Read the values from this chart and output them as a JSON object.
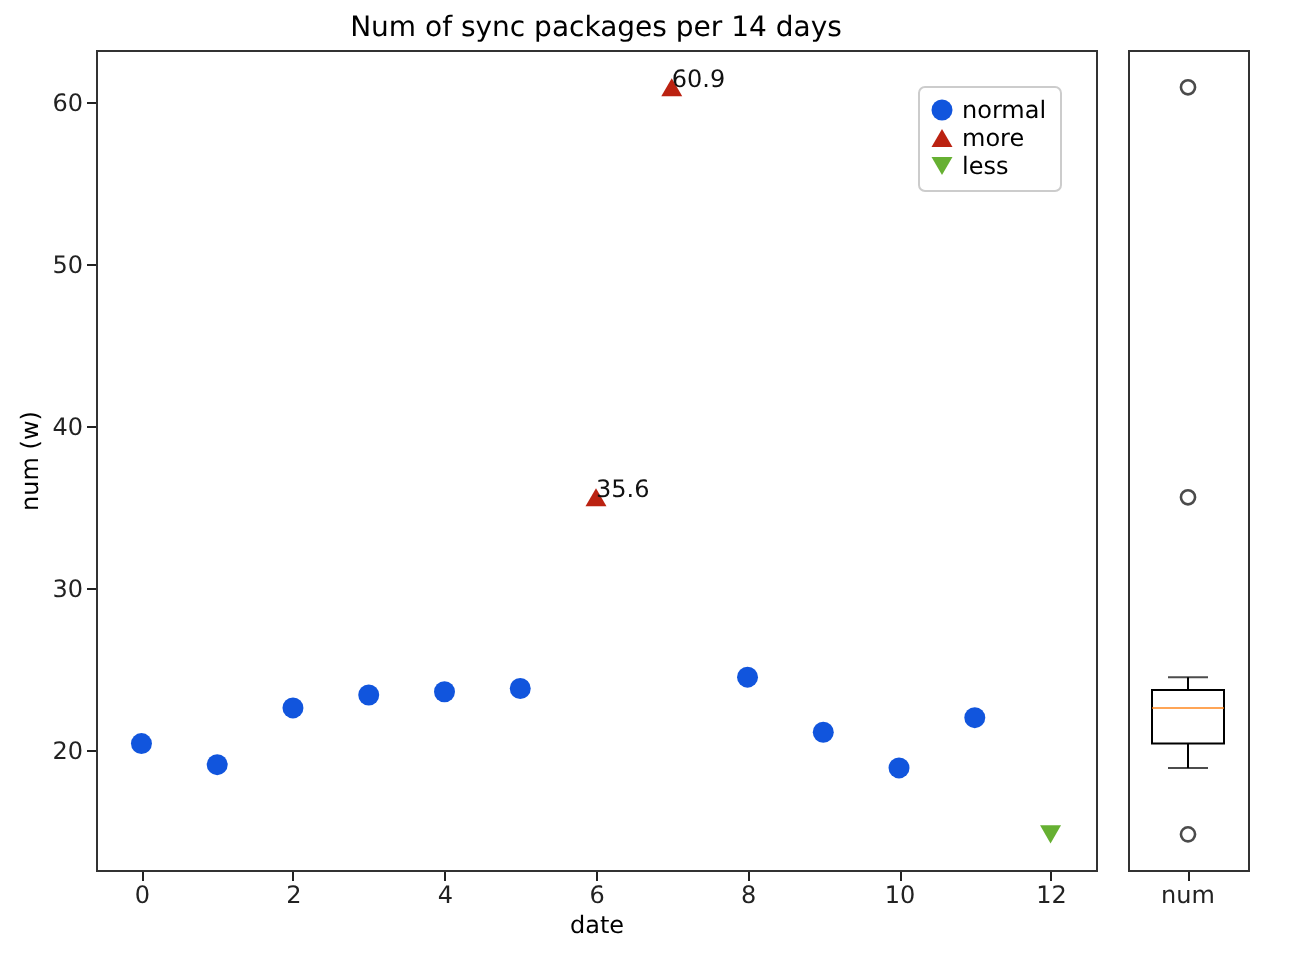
{
  "chart_data": [
    {
      "type": "scatter",
      "title": "Num of sync packages per 14 days",
      "xlabel": "date",
      "ylabel": "num (w)",
      "xlim": [
        -0.6,
        12.6
      ],
      "ylim": [
        12.6,
        63.2
      ],
      "xticks": [
        0,
        2,
        4,
        6,
        8,
        10,
        12
      ],
      "yticks": [
        20,
        30,
        40,
        50,
        60
      ],
      "grid": false,
      "legend": "top right",
      "series": [
        {
          "name": "normal",
          "color": "#1155dd",
          "marker": "circle",
          "x": [
            0,
            1,
            2,
            3,
            4,
            5,
            8,
            9,
            10,
            11
          ],
          "values": [
            20.4,
            19.1,
            22.6,
            23.4,
            23.6,
            23.8,
            24.5,
            21.1,
            18.9,
            22.0
          ]
        },
        {
          "name": "more",
          "color": "#bb2211",
          "marker": "triangle",
          "x": [
            6,
            7
          ],
          "values": [
            35.6,
            60.9
          ],
          "value_labels": [
            "35.6",
            "60.9"
          ]
        },
        {
          "name": "less",
          "color": "#66b032",
          "marker": "triangle-down",
          "x": [
            12
          ],
          "values": [
            14.8
          ]
        }
      ]
    },
    {
      "type": "box",
      "categories": [
        "num"
      ],
      "ylim": [
        12.6,
        63.2
      ],
      "tick_labels": "x",
      "boxes": [
        {
          "low": 18.9,
          "q1": 20.4,
          "median": 22.6,
          "q3": 23.7,
          "high": 24.5,
          "outliers": [
            14.8,
            35.6,
            60.9
          ]
        }
      ]
    }
  ]
}
